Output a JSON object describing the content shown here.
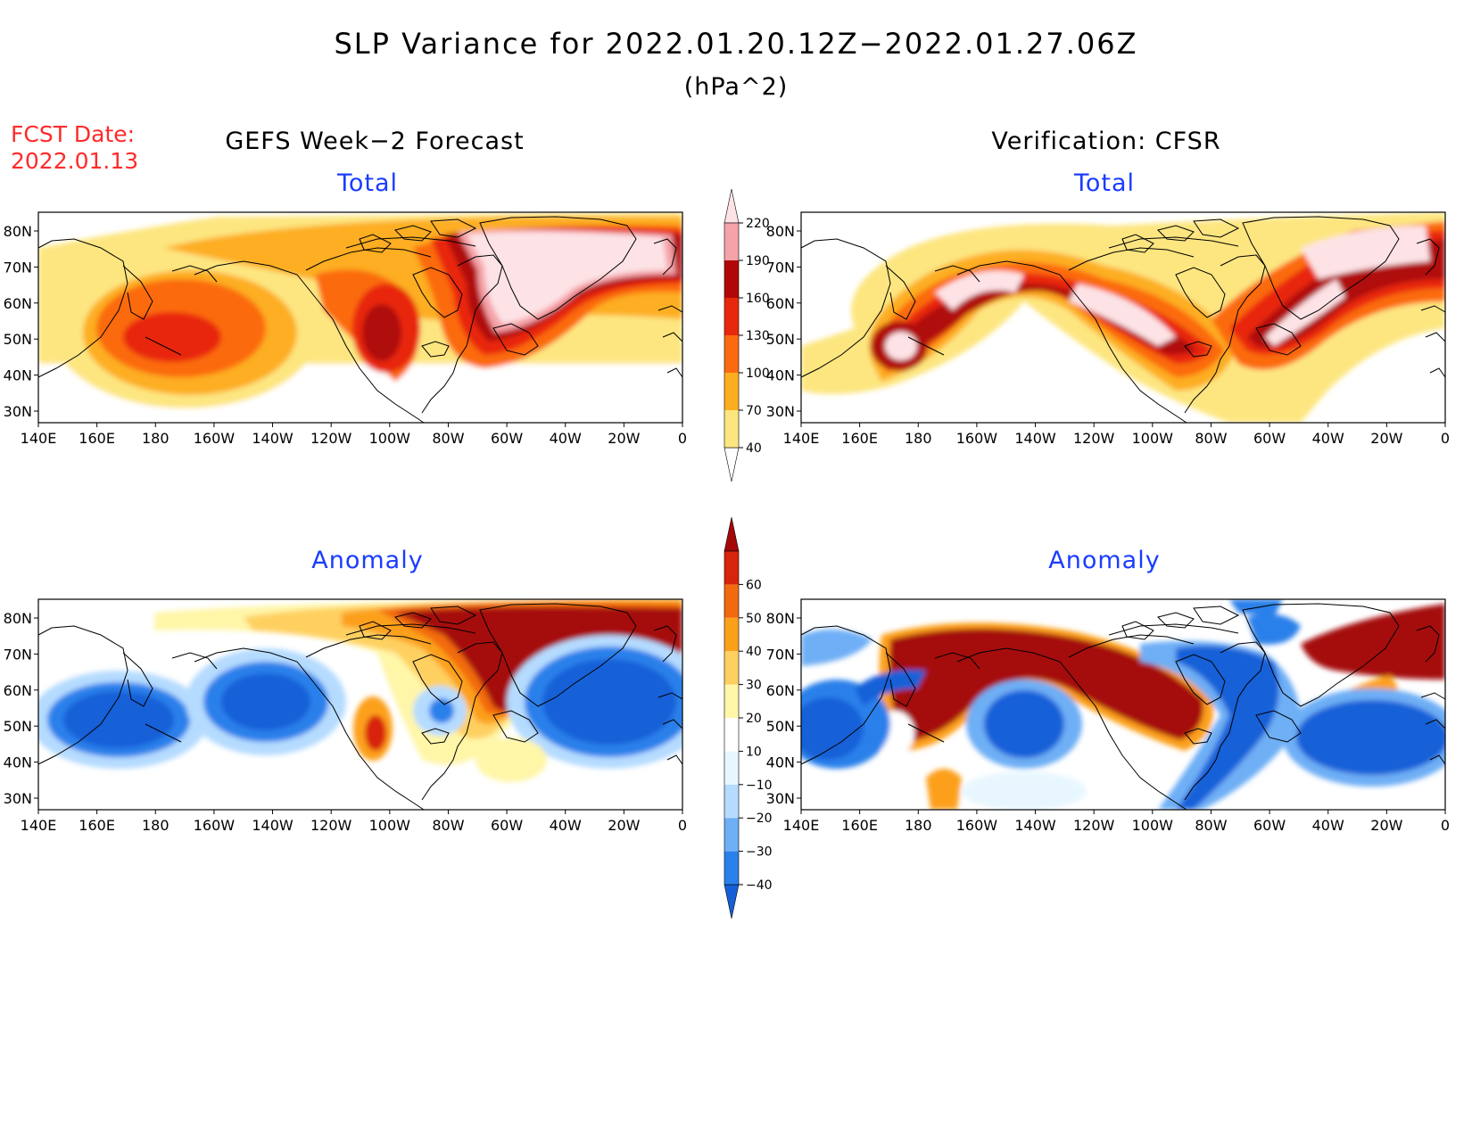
{
  "header": {
    "title": "SLP Variance for 2022.01.20.12Z−2022.01.27.06Z",
    "units": "(hPa^2)",
    "fcst_label": "FCST Date:",
    "fcst_date": "2022.01.13",
    "left_heading": "GEFS Week−2 Forecast",
    "right_heading": "Verification: CFSR"
  },
  "panels": {
    "forecast_total_title": "Total",
    "verification_total_title": "Total",
    "forecast_anomaly_title": "Anomaly",
    "verification_anomaly_title": "Anomaly"
  },
  "axes": {
    "lon_labels": [
      "140E",
      "160E",
      "180",
      "160W",
      "140W",
      "120W",
      "100W",
      "80W",
      "60W",
      "40W",
      "20W",
      "0"
    ],
    "lat_labels": [
      "80N",
      "70N",
      "60N",
      "50N",
      "40N",
      "30N"
    ]
  },
  "colorbars": {
    "total": {
      "labels": [
        "40",
        "70",
        "100",
        "130",
        "160",
        "190",
        "220"
      ],
      "colors": [
        "#ffffff",
        "#fde680",
        "#fdae20",
        "#fb6a10",
        "#e8280c",
        "#b00808",
        "#f5a3a8",
        "#fde3e6"
      ]
    },
    "anomaly": {
      "labels": [
        "−40",
        "−30",
        "−20",
        "−10",
        "10",
        "20",
        "30",
        "40",
        "50",
        "60"
      ],
      "colors": [
        "#1560d8",
        "#2a80ea",
        "#6eaff5",
        "#b5dbff",
        "#e8f7ff",
        "#ffffff",
        "#fff6a8",
        "#fed060",
        "#fca01a",
        "#f26a10",
        "#d8240c",
        "#a50808"
      ]
    }
  }
}
